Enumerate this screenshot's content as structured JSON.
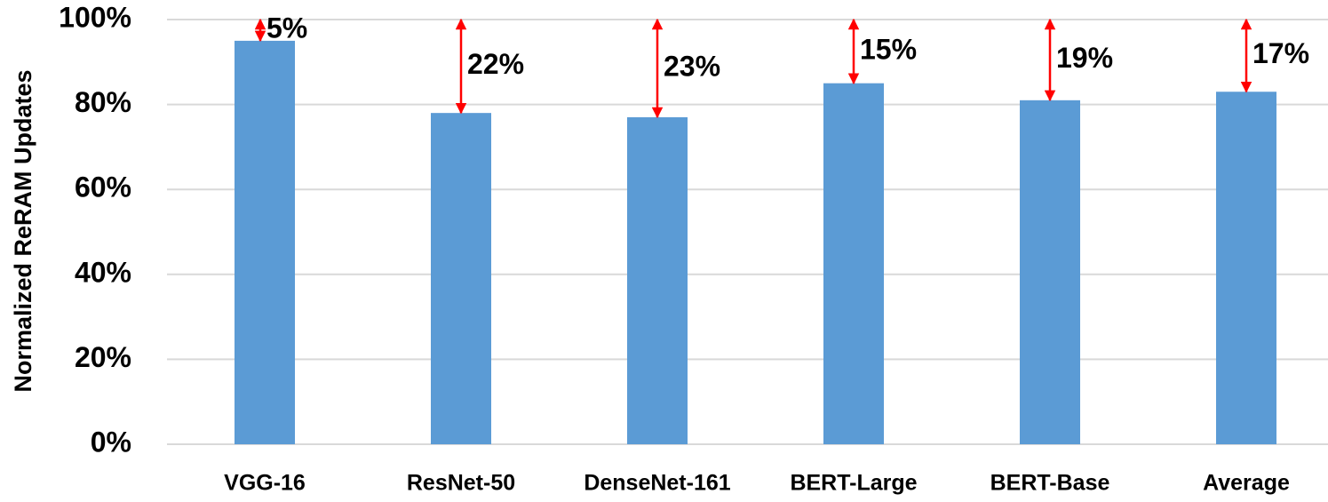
{
  "chart_data": {
    "type": "bar",
    "y_label": "Normalized ReRAM Updates",
    "categories": [
      "VGG-16",
      "ResNet-50",
      "DenseNet-161",
      "BERT-Large",
      "BERT-Base",
      "Average"
    ],
    "values": [
      95,
      78,
      77,
      85,
      81,
      83
    ],
    "color": "#5b9bd5",
    "annotations": [
      {
        "value": 5,
        "label": "5%"
      },
      {
        "value": 22,
        "label": "22%"
      },
      {
        "value": 23,
        "label": "23%"
      },
      {
        "value": 15,
        "label": "15%"
      },
      {
        "value": 19,
        "label": "19%"
      },
      {
        "value": 17,
        "label": "17%"
      }
    ],
    "annotation_color": "#ff0000",
    "ylim": [
      0,
      100
    ],
    "yticks": [
      {
        "value": 0,
        "label": "0%"
      },
      {
        "value": 20,
        "label": "20%"
      },
      {
        "value": 40,
        "label": "40%"
      },
      {
        "value": 60,
        "label": "60%"
      },
      {
        "value": 80,
        "label": "80%"
      },
      {
        "value": 100,
        "label": "100%"
      }
    ],
    "grid": true
  }
}
